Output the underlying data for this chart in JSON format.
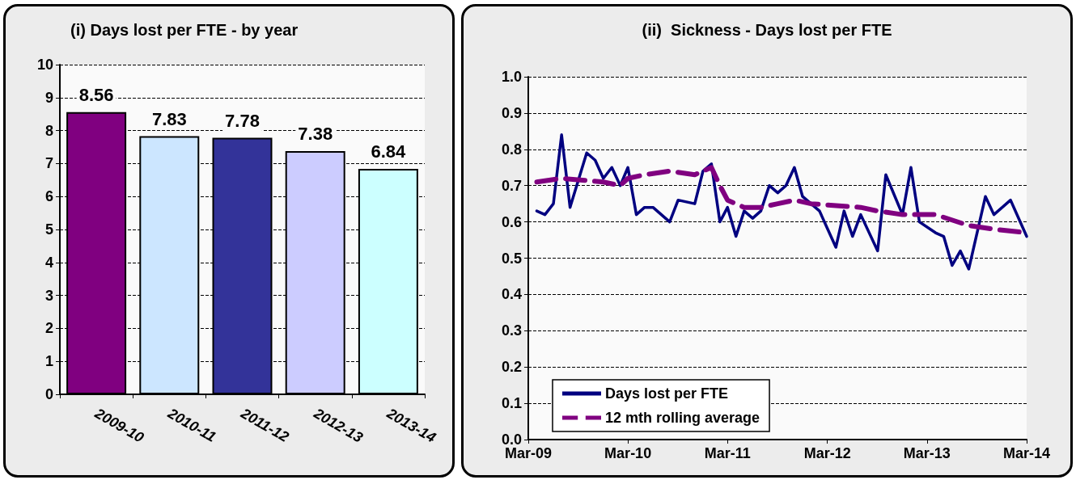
{
  "chart_data": [
    {
      "type": "bar",
      "title": "(i) Days lost per FTE - by year",
      "categories": [
        "2009-10",
        "2010-11",
        "2011-12",
        "2012-13",
        "2013-14"
      ],
      "values": [
        8.56,
        7.83,
        7.78,
        7.38,
        6.84
      ],
      "colors": [
        "#800080",
        "#cce6ff",
        "#333399",
        "#ccccff",
        "#ccffff"
      ],
      "ylim": [
        0,
        10
      ],
      "yticks": [
        0,
        1,
        2,
        3,
        4,
        5,
        6,
        7,
        8,
        9,
        10
      ],
      "data_labels": true,
      "grid": "y"
    },
    {
      "type": "line",
      "title": "(ii)  Sickness - Days lost per FTE",
      "series": [
        {
          "name": "Days lost per FTE",
          "color": "#000080",
          "line_style": "solid",
          "x": [
            "2009-04",
            "2009-05",
            "2009-06",
            "2009-07",
            "2009-08",
            "2009-10",
            "2009-11",
            "2009-12",
            "2010-01",
            "2010-02",
            "2010-03",
            "2010-04",
            "2010-05",
            "2010-06",
            "2010-08",
            "2010-09",
            "2010-11",
            "2010-12",
            "2011-01",
            "2011-02",
            "2011-03",
            "2011-04",
            "2011-05",
            "2011-06",
            "2011-07",
            "2011-08",
            "2011-09",
            "2011-10",
            "2011-11",
            "2011-12",
            "2012-02",
            "2012-04",
            "2012-05",
            "2012-06",
            "2012-07",
            "2012-09",
            "2012-10",
            "2012-12",
            "2013-01",
            "2013-02",
            "2013-04",
            "2013-05",
            "2013-06",
            "2013-07",
            "2013-08",
            "2013-10",
            "2013-11",
            "2014-01",
            "2014-03"
          ],
          "values": [
            0.63,
            0.62,
            0.65,
            0.84,
            0.64,
            0.79,
            0.77,
            0.72,
            0.75,
            0.7,
            0.75,
            0.62,
            0.64,
            0.64,
            0.6,
            0.66,
            0.65,
            0.74,
            0.76,
            0.6,
            0.64,
            0.56,
            0.63,
            0.61,
            0.63,
            0.7,
            0.68,
            0.7,
            0.75,
            0.67,
            0.63,
            0.53,
            0.63,
            0.56,
            0.62,
            0.52,
            0.73,
            0.62,
            0.75,
            0.6,
            0.57,
            0.56,
            0.48,
            0.52,
            0.47,
            0.67,
            0.62,
            0.66,
            0.56
          ]
        },
        {
          "name": "12 mth rolling average",
          "color": "#800080",
          "line_style": "dashed",
          "x": [
            "2009-04",
            "2009-07",
            "2009-12",
            "2010-02",
            "2010-03",
            "2010-05",
            "2010-08",
            "2010-11",
            "2011-01",
            "2011-02",
            "2011-03",
            "2011-05",
            "2011-07",
            "2011-09",
            "2011-11",
            "2012-01",
            "2012-07",
            "2012-09",
            "2012-12",
            "2013-04",
            "2013-08",
            "2013-11",
            "2014-03"
          ],
          "values": [
            0.71,
            0.72,
            0.71,
            0.7,
            0.72,
            0.73,
            0.74,
            0.73,
            0.75,
            0.7,
            0.66,
            0.64,
            0.64,
            0.65,
            0.66,
            0.65,
            0.64,
            0.63,
            0.62,
            0.62,
            0.59,
            0.58,
            0.57
          ]
        }
      ],
      "xlim": [
        "2009-03",
        "2014-03"
      ],
      "xticks": [
        {
          "value": "2009-03",
          "label": "Mar-09"
        },
        {
          "value": "2010-03",
          "label": "Mar-10"
        },
        {
          "value": "2011-03",
          "label": "Mar-11"
        },
        {
          "value": "2012-03",
          "label": "Mar-12"
        },
        {
          "value": "2013-03",
          "label": "Mar-13"
        },
        {
          "value": "2014-03",
          "label": "Mar-14"
        }
      ],
      "ylim": [
        0,
        1
      ],
      "yticks": [
        {
          "value": 0,
          "label": "0.0"
        },
        {
          "value": 0.1,
          "label": "0.1"
        },
        {
          "value": 0.2,
          "label": "0.2"
        },
        {
          "value": 0.3,
          "label": "0.3"
        },
        {
          "value": 0.4,
          "label": "0.4"
        },
        {
          "value": 0.5,
          "label": "0.5"
        },
        {
          "value": 0.6,
          "label": "0.6"
        },
        {
          "value": 0.7,
          "label": "0.7"
        },
        {
          "value": 0.8,
          "label": "0.8"
        },
        {
          "value": 0.9,
          "label": "0.9"
        },
        {
          "value": 1,
          "label": "1.0"
        }
      ],
      "grid": "y",
      "legend": "bottom left",
      "marker": "none"
    }
  ]
}
